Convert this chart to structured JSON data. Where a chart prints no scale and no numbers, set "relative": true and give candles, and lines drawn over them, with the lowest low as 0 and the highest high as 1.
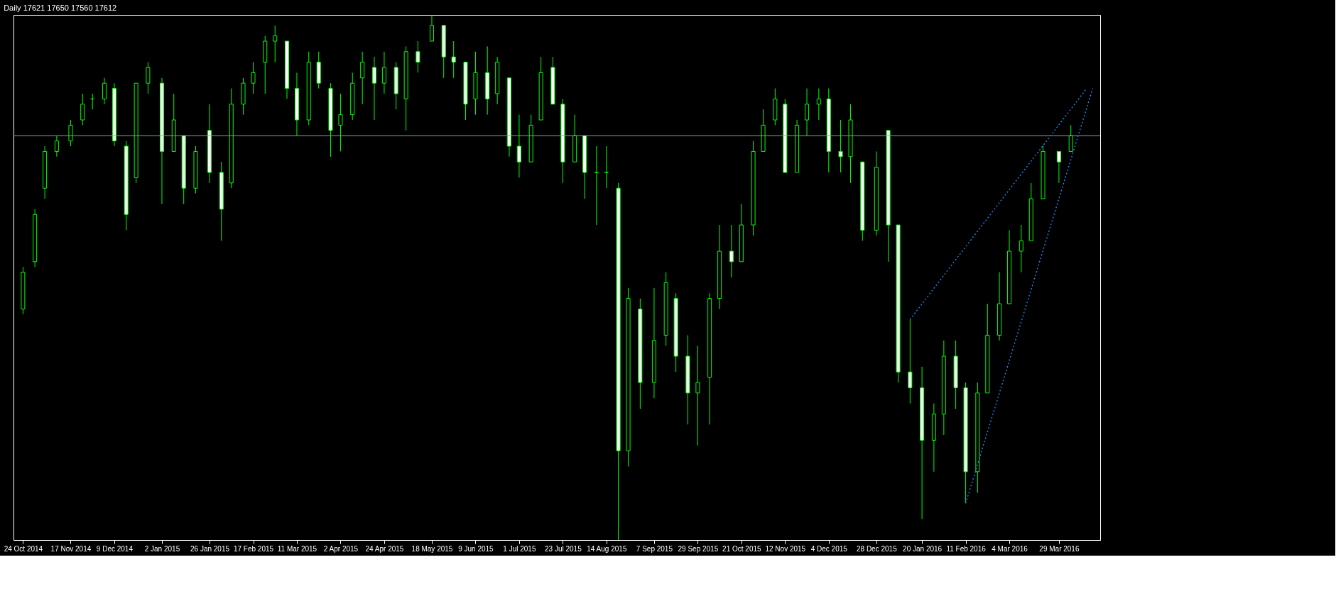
{
  "chart_data": {
    "type": "candlestick",
    "title": "Daily  17621 17650 17560 17612",
    "relative": true,
    "grid": false,
    "color": "#00ff00",
    "x": [
      "2014-10-24",
      "2014-10-30",
      "2014-11-04",
      "2014-11-10",
      "2014-11-17",
      "2014-11-23",
      "2014-11-28",
      "2014-12-04",
      "2014-12-09",
      "2014-12-15",
      "2014-12-20",
      "2014-12-26",
      "2015-01-02",
      "2015-01-08",
      "2015-01-13",
      "2015-01-19",
      "2015-01-26",
      "2015-02-01",
      "2015-02-06",
      "2015-02-12",
      "2015-02-17",
      "2015-02-23",
      "2015-02-28",
      "2015-03-06",
      "2015-03-11",
      "2015-03-17",
      "2015-03-22",
      "2015-03-28",
      "2015-04-02",
      "2015-04-08",
      "2015-04-13",
      "2015-04-19",
      "2015-04-24",
      "2015-04-30",
      "2015-05-05",
      "2015-05-11",
      "2015-05-18",
      "2015-05-24",
      "2015-05-29",
      "2015-06-04",
      "2015-06-09",
      "2015-06-15",
      "2015-06-20",
      "2015-06-26",
      "2015-07-01",
      "2015-07-07",
      "2015-07-12",
      "2015-07-18",
      "2015-07-23",
      "2015-07-29",
      "2015-08-03",
      "2015-08-09",
      "2015-08-14",
      "2015-08-20",
      "2015-08-25",
      "2015-08-31",
      "2015-09-07",
      "2015-09-13",
      "2015-09-18",
      "2015-09-24",
      "2015-09-29",
      "2015-10-05",
      "2015-10-10",
      "2015-10-16",
      "2015-10-21",
      "2015-10-27",
      "2015-11-01",
      "2015-11-07",
      "2015-11-12",
      "2015-11-18",
      "2015-11-23",
      "2015-11-29",
      "2015-12-04",
      "2015-12-10",
      "2015-12-15",
      "2015-12-21",
      "2015-12-28",
      "2016-01-03",
      "2016-01-08",
      "2016-01-14",
      "2016-01-20",
      "2016-01-26",
      "2016-01-31",
      "2016-02-06",
      "2016-02-11",
      "2016-02-17",
      "2016-02-22",
      "2016-02-28",
      "2016-03-04",
      "2016-03-10",
      "2016-03-15",
      "2016-03-21",
      "2016-03-29",
      "2016-04-04"
    ],
    "ohlc": [
      [
        0.44,
        0.52,
        0.43,
        0.51
      ],
      [
        0.53,
        0.63,
        0.52,
        0.62
      ],
      [
        0.67,
        0.75,
        0.65,
        0.74
      ],
      [
        0.74,
        0.77,
        0.73,
        0.76
      ],
      [
        0.76,
        0.8,
        0.75,
        0.79
      ],
      [
        0.8,
        0.85,
        0.79,
        0.83
      ],
      [
        0.84,
        0.85,
        0.82,
        0.84
      ],
      [
        0.84,
        0.88,
        0.83,
        0.87
      ],
      [
        0.86,
        0.87,
        0.75,
        0.76
      ],
      [
        0.75,
        0.76,
        0.59,
        0.62
      ],
      [
        0.69,
        0.87,
        0.68,
        0.87
      ],
      [
        0.87,
        0.91,
        0.85,
        0.9
      ],
      [
        0.87,
        0.88,
        0.64,
        0.74
      ],
      [
        0.74,
        0.85,
        0.74,
        0.8
      ],
      [
        0.77,
        0.77,
        0.64,
        0.67
      ],
      [
        0.67,
        0.75,
        0.66,
        0.74
      ],
      [
        0.78,
        0.83,
        0.68,
        0.7
      ],
      [
        0.7,
        0.72,
        0.57,
        0.63
      ],
      [
        0.68,
        0.86,
        0.67,
        0.83
      ],
      [
        0.83,
        0.88,
        0.81,
        0.87
      ],
      [
        0.87,
        0.91,
        0.85,
        0.89
      ],
      [
        0.91,
        0.96,
        0.85,
        0.95
      ],
      [
        0.95,
        0.98,
        0.91,
        0.96
      ],
      [
        0.95,
        0.95,
        0.84,
        0.86
      ],
      [
        0.86,
        0.89,
        0.77,
        0.8
      ],
      [
        0.8,
        0.93,
        0.79,
        0.91
      ],
      [
        0.91,
        0.93,
        0.86,
        0.87
      ],
      [
        0.86,
        0.87,
        0.73,
        0.78
      ],
      [
        0.79,
        0.85,
        0.74,
        0.81
      ],
      [
        0.81,
        0.89,
        0.8,
        0.87
      ],
      [
        0.88,
        0.93,
        0.83,
        0.91
      ],
      [
        0.9,
        0.92,
        0.8,
        0.87
      ],
      [
        0.87,
        0.93,
        0.85,
        0.9
      ],
      [
        0.9,
        0.91,
        0.82,
        0.85
      ],
      [
        0.84,
        0.94,
        0.78,
        0.93
      ],
      [
        0.93,
        0.95,
        0.89,
        0.91
      ],
      [
        0.95,
        1.0,
        0.95,
        0.98
      ],
      [
        0.98,
        0.98,
        0.88,
        0.92
      ],
      [
        0.92,
        0.95,
        0.88,
        0.91
      ],
      [
        0.91,
        0.91,
        0.8,
        0.83
      ],
      [
        0.84,
        0.93,
        0.81,
        0.89
      ],
      [
        0.89,
        0.94,
        0.81,
        0.84
      ],
      [
        0.85,
        0.92,
        0.83,
        0.91
      ],
      [
        0.88,
        0.88,
        0.73,
        0.75
      ],
      [
        0.75,
        0.81,
        0.69,
        0.72
      ],
      [
        0.72,
        0.81,
        0.72,
        0.79
      ],
      [
        0.8,
        0.92,
        0.8,
        0.89
      ],
      [
        0.9,
        0.92,
        0.83,
        0.83
      ],
      [
        0.83,
        0.84,
        0.68,
        0.72
      ],
      [
        0.72,
        0.81,
        0.72,
        0.77
      ],
      [
        0.77,
        0.77,
        0.65,
        0.7
      ],
      [
        0.7,
        0.75,
        0.6,
        0.7
      ],
      [
        0.7,
        0.75,
        0.67,
        0.7
      ],
      [
        0.67,
        0.68,
        0.0,
        0.17
      ],
      [
        0.17,
        0.48,
        0.14,
        0.46
      ],
      [
        0.44,
        0.46,
        0.25,
        0.3
      ],
      [
        0.3,
        0.48,
        0.27,
        0.38
      ],
      [
        0.39,
        0.51,
        0.37,
        0.49
      ],
      [
        0.46,
        0.47,
        0.32,
        0.35
      ],
      [
        0.35,
        0.39,
        0.22,
        0.28
      ],
      [
        0.28,
        0.37,
        0.18,
        0.3
      ],
      [
        0.31,
        0.47,
        0.22,
        0.46
      ],
      [
        0.46,
        0.6,
        0.44,
        0.55
      ],
      [
        0.55,
        0.6,
        0.5,
        0.53
      ],
      [
        0.53,
        0.64,
        0.53,
        0.6
      ],
      [
        0.6,
        0.76,
        0.58,
        0.74
      ],
      [
        0.74,
        0.82,
        0.74,
        0.79
      ],
      [
        0.8,
        0.86,
        0.79,
        0.84
      ],
      [
        0.83,
        0.84,
        0.7,
        0.7
      ],
      [
        0.7,
        0.8,
        0.7,
        0.79
      ],
      [
        0.8,
        0.86,
        0.77,
        0.83
      ],
      [
        0.83,
        0.86,
        0.8,
        0.84
      ],
      [
        0.84,
        0.86,
        0.7,
        0.74
      ],
      [
        0.74,
        0.8,
        0.7,
        0.73
      ],
      [
        0.73,
        0.83,
        0.68,
        0.8
      ],
      [
        0.72,
        0.72,
        0.57,
        0.59
      ],
      [
        0.59,
        0.74,
        0.58,
        0.71
      ],
      [
        0.78,
        0.78,
        0.53,
        0.6
      ],
      [
        0.6,
        0.6,
        0.3,
        0.32
      ],
      [
        0.32,
        0.42,
        0.26,
        0.29
      ],
      [
        0.29,
        0.33,
        0.04,
        0.19
      ],
      [
        0.19,
        0.26,
        0.13,
        0.24
      ],
      [
        0.24,
        0.38,
        0.2,
        0.35
      ],
      [
        0.35,
        0.38,
        0.25,
        0.29
      ],
      [
        0.29,
        0.3,
        0.07,
        0.13
      ],
      [
        0.13,
        0.3,
        0.09,
        0.28
      ],
      [
        0.28,
        0.45,
        0.28,
        0.39
      ],
      [
        0.39,
        0.51,
        0.38,
        0.45
      ],
      [
        0.45,
        0.59,
        0.45,
        0.55
      ],
      [
        0.55,
        0.6,
        0.51,
        0.57
      ],
      [
        0.57,
        0.68,
        0.57,
        0.65
      ],
      [
        0.65,
        0.75,
        0.65,
        0.74
      ],
      [
        0.74,
        0.74,
        0.68,
        0.72
      ],
      [
        0.74,
        0.79,
        0.74,
        0.77
      ]
    ],
    "series": [
      {
        "type": "line",
        "x": [
          "2016-01-14",
          "2016-04-12"
        ],
        "values": [
          0.42,
          0.86
        ],
        "color": "#1e90ff",
        "line_style": "dotted"
      },
      {
        "type": "line",
        "x": [
          "2016-02-11",
          "2016-04-15"
        ],
        "values": [
          0.07,
          0.86
        ],
        "color": "#1e90ff",
        "line_style": "dotted"
      }
    ],
    "ref_lines": [
      {
        "axis": "y",
        "value": 0.77,
        "color": "#8a9cb0"
      }
    ],
    "xlim": [
      "2014-10-21",
      "2016-04-17"
    ],
    "xticks": [
      {
        "value": "2014-10-24",
        "label": "24 Oct 2014"
      },
      {
        "value": "2014-11-17",
        "label": "17 Nov 2014"
      },
      {
        "value": "2014-12-09",
        "label": "9 Dec 2014"
      },
      {
        "value": "2015-01-02",
        "label": "2 Jan 2015"
      },
      {
        "value": "2015-01-26",
        "label": "26 Jan 2015"
      },
      {
        "value": "2015-02-17",
        "label": "17 Feb 2015"
      },
      {
        "value": "2015-03-11",
        "label": "11 Mar 2015"
      },
      {
        "value": "2015-04-02",
        "label": "2 Apr 2015"
      },
      {
        "value": "2015-04-24",
        "label": "24 Apr 2015"
      },
      {
        "value": "2015-05-18",
        "label": "18 May 2015"
      },
      {
        "value": "2015-06-09",
        "label": "9 Jun 2015"
      },
      {
        "value": "2015-07-01",
        "label": "1 Jul 2015"
      },
      {
        "value": "2015-07-23",
        "label": "23 Jul 2015"
      },
      {
        "value": "2015-08-14",
        "label": "14 Aug 2015"
      },
      {
        "value": "2015-09-07",
        "label": "7 Sep 2015"
      },
      {
        "value": "2015-09-29",
        "label": "29 Sep 2015"
      },
      {
        "value": "2015-10-21",
        "label": "21 Oct 2015"
      },
      {
        "value": "2015-11-12",
        "label": "12 Nov 2015"
      },
      {
        "value": "2015-12-04",
        "label": "4 Dec 2015"
      },
      {
        "value": "2015-12-28",
        "label": "28 Dec 2015"
      },
      {
        "value": "2016-01-20",
        "label": "20 Jan 2016"
      },
      {
        "value": "2016-02-11",
        "label": "11 Feb 2016"
      },
      {
        "value": "2016-03-04",
        "label": "4 Mar 2016"
      },
      {
        "value": "2016-03-29",
        "label": "29 Mar 2016"
      }
    ]
  }
}
